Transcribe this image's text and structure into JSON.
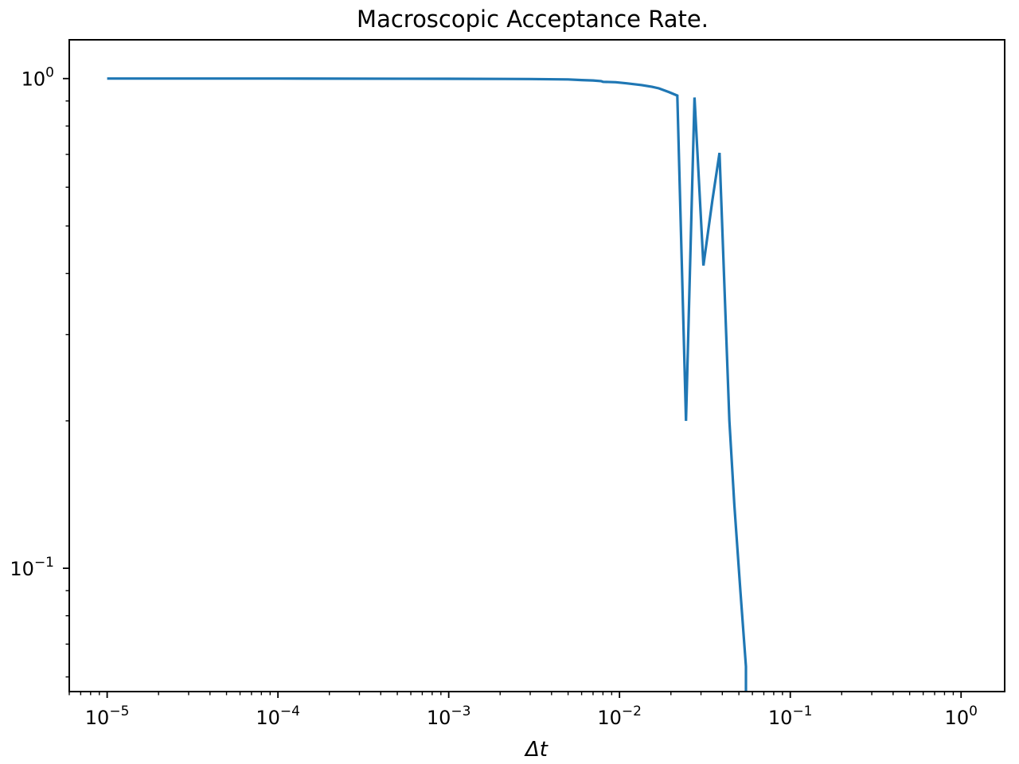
{
  "chart_data": {
    "type": "line",
    "title": "Macroscopic Acceptance Rate.",
    "xlabel": "Δt",
    "ylabel": "",
    "xscale": "log",
    "yscale": "log",
    "xlim": [
      6e-06,
      1.8
    ],
    "ylim": [
      0.056,
      1.2
    ],
    "grid": false,
    "x_ticks": [
      {
        "base": "10",
        "exp": "−5"
      },
      {
        "base": "10",
        "exp": "−4"
      },
      {
        "base": "10",
        "exp": "−3"
      },
      {
        "base": "10",
        "exp": "−2"
      },
      {
        "base": "10",
        "exp": "−1"
      },
      {
        "base": "10",
        "exp": "0"
      }
    ],
    "y_ticks": [
      {
        "base": "10",
        "exp": "0"
      },
      {
        "base": "10",
        "exp": "−1"
      }
    ],
    "colors": {
      "line": "#1f77b4",
      "axes": "#000000"
    },
    "series": [
      {
        "x": [
          1e-05,
          0.0001,
          0.001,
          0.003,
          0.005,
          0.006,
          0.007,
          0.0078,
          0.008,
          0.0095,
          0.011,
          0.0135,
          0.0155,
          0.017,
          0.0195,
          0.0218,
          0.0245,
          0.0275,
          0.031,
          0.035,
          0.0385,
          0.044,
          0.047,
          0.051,
          0.055,
          0.055
        ],
        "y": [
          1.0,
          1.0,
          0.999,
          0.998,
          0.996,
          0.993,
          0.991,
          0.988,
          0.985,
          0.983,
          0.978,
          0.97,
          0.962,
          0.955,
          0.938,
          0.923,
          0.2,
          0.915,
          0.415,
          0.565,
          0.705,
          0.2,
          0.135,
          0.09,
          0.063,
          0.056
        ]
      }
    ]
  }
}
